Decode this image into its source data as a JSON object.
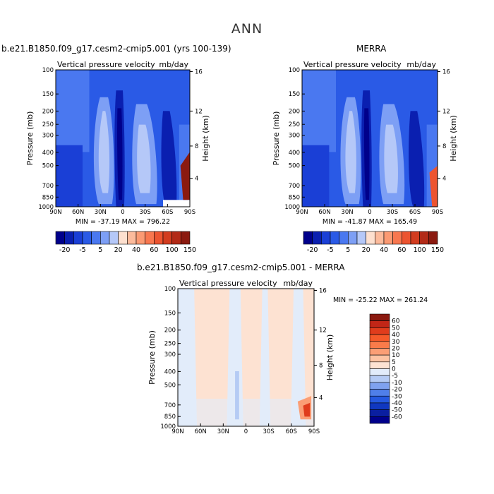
{
  "main_title": "ANN",
  "panels": [
    {
      "id": "model",
      "case_title": "b.e21.B1850.f09_g17.cesm2-cmip5.001 (yrs 100-139)",
      "variable": "Vertical pressure velocity",
      "units": "mb/day",
      "min_max": "MIN = -37.19   MAX = 796.22",
      "ylabel": "Pressure (mb)",
      "ylabel_right": "Height (km)",
      "y_ticks": [
        "100",
        "150",
        "200",
        "250",
        "300",
        "400",
        "500",
        "700",
        "850",
        "1000"
      ],
      "y_right_ticks": [
        "4",
        "8",
        "12",
        "16"
      ],
      "x_ticks": [
        "90N",
        "60N",
        "30N",
        "0",
        "30S",
        "60S",
        "90S"
      ]
    },
    {
      "id": "obs",
      "case_title": "MERRA",
      "variable": "Vertical pressure velocity",
      "units": "mb/day",
      "min_max": "MIN = -41.87   MAX = 165.49",
      "ylabel": "Pressure (mb)",
      "ylabel_right": "Height (km)",
      "y_ticks": [
        "100",
        "150",
        "200",
        "250",
        "300",
        "400",
        "500",
        "700",
        "850",
        "1000"
      ],
      "y_right_ticks": [
        "4",
        "8",
        "12",
        "16"
      ],
      "x_ticks": [
        "90N",
        "60N",
        "30N",
        "0",
        "30S",
        "60S",
        "90S"
      ]
    },
    {
      "id": "diff",
      "case_title": "b.e21.B1850.f09_g17.cesm2-cmip5.001 - MERRA",
      "variable": "Vertical pressure velocity",
      "units": "mb/day",
      "min_max": "MIN = -25.22   MAX = 261.24",
      "ylabel": "Pressure (mb)",
      "ylabel_right": "Height (km)",
      "y_ticks": [
        "100",
        "150",
        "200",
        "250",
        "300",
        "400",
        "500",
        "700",
        "850",
        "1000"
      ],
      "y_right_ticks": [
        "4",
        "8",
        "12",
        "16"
      ],
      "x_ticks": [
        "90N",
        "60N",
        "30N",
        "0",
        "30S",
        "60S",
        "90S"
      ]
    }
  ],
  "colorbar_top": {
    "labels": [
      "-20",
      "-5",
      "5",
      "20",
      "40",
      "60",
      "100",
      "150"
    ],
    "colors": [
      "#00008b",
      "#0a1fb0",
      "#1a3fd6",
      "#2a5ae6",
      "#4a78f0",
      "#7d9ff5",
      "#b5c8f8",
      "#fde0cf",
      "#fcbb9c",
      "#fb9a73",
      "#f8774f",
      "#ec5430",
      "#d23c1f",
      "#b22a17",
      "#8b1a10"
    ]
  },
  "colorbar_diff": {
    "labels": [
      "60",
      "50",
      "40",
      "30",
      "20",
      "10",
      "5",
      "0",
      "-5",
      "-10",
      "-20",
      "-30",
      "-40",
      "-50",
      "-60"
    ],
    "colors": [
      "#8b1a10",
      "#c22617",
      "#e03c1c",
      "#f55a2a",
      "#f97b4a",
      "#fb9e75",
      "#fdc3a3",
      "#fde2d2",
      "#e2ecfa",
      "#b5cbf4",
      "#7fa2ef",
      "#4f7fe9",
      "#2559e0",
      "#1038c0",
      "#0a1fa0",
      "#00008b"
    ]
  }
}
